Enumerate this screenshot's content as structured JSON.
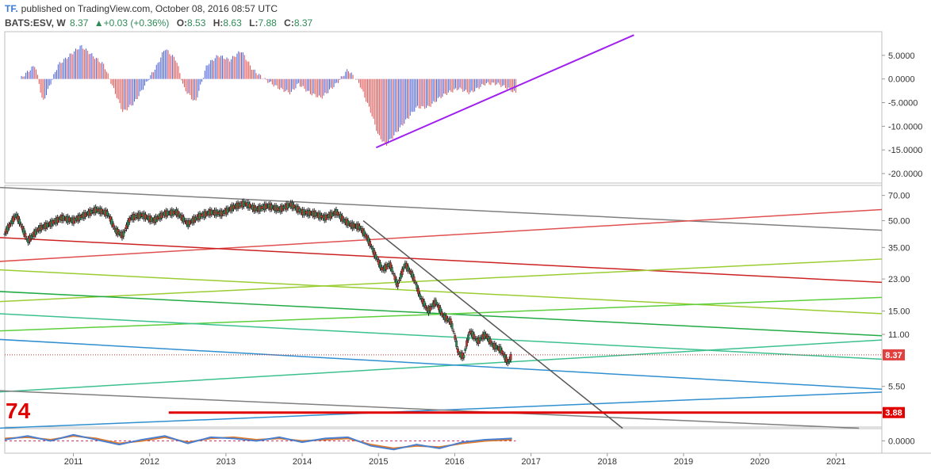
{
  "header": {
    "logo": "TF.",
    "published": "published on TradingView.com, October 08, 2016 08:57 UTC",
    "symbol": "BATS:ESV, W",
    "last": "8.37",
    "change_arrow": "▲",
    "change": "+0.03 (+0.36%)",
    "o_label": "O:",
    "o": "8.53",
    "h_label": "H:",
    "h": "8.63",
    "l_label": "L:",
    "l": "7.88",
    "c_label": "C:",
    "c": "8.37"
  },
  "overlay": {
    "count_label": "74"
  },
  "chart_data": [
    {
      "type": "bar",
      "panel": "oscillator-histogram",
      "yticks": [
        "5.0000",
        "0.0000",
        "-5.0000",
        "-10.0000",
        "-15.0000",
        "-20.0000"
      ],
      "ylim": [
        -22,
        10
      ],
      "x_start": 2010.3,
      "x_end": 2016.8,
      "samples": [
        [
          2010.3,
          0
        ],
        [
          2010.5,
          3
        ],
        [
          2010.6,
          -5
        ],
        [
          2010.8,
          3
        ],
        [
          2010.95,
          5
        ],
        [
          2011.1,
          7
        ],
        [
          2011.25,
          5
        ],
        [
          2011.4,
          3
        ],
        [
          2011.55,
          -3
        ],
        [
          2011.65,
          -7
        ],
        [
          2011.8,
          -5
        ],
        [
          2011.95,
          -1
        ],
        [
          2012.1,
          3
        ],
        [
          2012.2,
          6.5
        ],
        [
          2012.35,
          4
        ],
        [
          2012.45,
          -2
        ],
        [
          2012.6,
          -5
        ],
        [
          2012.75,
          3
        ],
        [
          2012.9,
          5
        ],
        [
          2013.05,
          4
        ],
        [
          2013.2,
          6
        ],
        [
          2013.35,
          2
        ],
        [
          2013.5,
          0
        ],
        [
          2013.7,
          -2
        ],
        [
          2013.85,
          -3
        ],
        [
          2013.95,
          -1
        ],
        [
          2014.1,
          -3
        ],
        [
          2014.25,
          -4
        ],
        [
          2014.45,
          -1
        ],
        [
          2014.6,
          2
        ],
        [
          2014.75,
          -1
        ],
        [
          2014.9,
          -7
        ],
        [
          2015.0,
          -12
        ],
        [
          2015.1,
          -14
        ],
        [
          2015.2,
          -12
        ],
        [
          2015.35,
          -9
        ],
        [
          2015.5,
          -6
        ],
        [
          2015.65,
          -6
        ],
        [
          2015.8,
          -4
        ],
        [
          2015.9,
          -3
        ],
        [
          2016.05,
          -2
        ],
        [
          2016.2,
          -3
        ],
        [
          2016.4,
          -1
        ],
        [
          2016.55,
          -1
        ],
        [
          2016.7,
          -2
        ],
        [
          2016.8,
          -3
        ]
      ],
      "annotations": [
        {
          "type": "trendline",
          "color": "#a020f0",
          "x1": 2014.97,
          "y1": -14.5,
          "x2": 2018.35,
          "y2": 9.3
        }
      ]
    },
    {
      "type": "line",
      "panel": "price",
      "title": "",
      "log_scale": true,
      "ylim": [
        3.2,
        80
      ],
      "x_range": [
        2010.1,
        2021.6
      ],
      "x_ticks": [
        "2011",
        "2012",
        "2013",
        "2014",
        "2015",
        "2016",
        "2017",
        "2018",
        "2019",
        "2020",
        "2021"
      ],
      "x_tick_values": [
        2011,
        2012,
        2013,
        2014,
        2015,
        2016,
        2017,
        2018,
        2019,
        2020,
        2021
      ],
      "yticks": [
        "70.00",
        "50.00",
        "35.00",
        "23.00",
        "15.00",
        "11.00",
        "5.50"
      ],
      "ytick_values": [
        70,
        50,
        35,
        23,
        15,
        11,
        5.5
      ],
      "last_price_label": "8.37",
      "last_price": 8.37,
      "level_label": "3.88",
      "level": 3.88,
      "series": [
        {
          "x": [
            2010.1,
            2010.25,
            2010.4,
            2010.55,
            2010.7,
            2010.85,
            2011.0,
            2011.15,
            2011.3,
            2011.45,
            2011.55,
            2011.65,
            2011.75,
            2011.9,
            2012.05,
            2012.2,
            2012.35,
            2012.5,
            2012.65,
            2012.8,
            2012.95,
            2013.1,
            2013.25,
            2013.4,
            2013.55,
            2013.7,
            2013.85,
            2014.0,
            2014.15,
            2014.3,
            2014.45,
            2014.55,
            2014.65,
            2014.75,
            2014.85,
            2014.95,
            2015.05,
            2015.15,
            2015.25,
            2015.35,
            2015.45,
            2015.55,
            2015.65,
            2015.75,
            2015.85,
            2015.95,
            2016.05,
            2016.12,
            2016.2,
            2016.3,
            2016.4,
            2016.5,
            2016.6,
            2016.7,
            2016.75
          ],
          "y": [
            42,
            54,
            38,
            45,
            48,
            52,
            50,
            54,
            58,
            55,
            44,
            41,
            52,
            54,
            50,
            55,
            56,
            48,
            53,
            56,
            55,
            60,
            63,
            58,
            61,
            58,
            62,
            56,
            55,
            52,
            56,
            50,
            47,
            46,
            40,
            32,
            26,
            28,
            21,
            28,
            24,
            18,
            15,
            17,
            14,
            13,
            8.5,
            8.2,
            11.5,
            10,
            11,
            9.5,
            9,
            7.5,
            8.4
          ]
        }
      ],
      "annotations": [
        {
          "type": "trendline",
          "color": "#7f7f7f",
          "x1": 2010.0,
          "y1": 78,
          "x2": 2021.6,
          "y2": 44
        },
        {
          "type": "trendline",
          "color": "#e05050",
          "x1": 2010.0,
          "y1": 29,
          "x2": 2021.6,
          "y2": 58
        },
        {
          "type": "trendline",
          "color": "#cc2222",
          "x1": 2010.0,
          "y1": 40,
          "x2": 2021.6,
          "y2": 22
        },
        {
          "type": "trendline",
          "color": "#9acd32",
          "x1": 2010.0,
          "y1": 17,
          "x2": 2021.6,
          "y2": 30
        },
        {
          "type": "trendline",
          "color": "#9acd32",
          "x1": 2010.0,
          "y1": 26,
          "x2": 2021.6,
          "y2": 14.5
        },
        {
          "type": "trendline",
          "color": "#22aa44",
          "x1": 2010.0,
          "y1": 19.5,
          "x2": 2021.6,
          "y2": 10.8
        },
        {
          "type": "trendline",
          "color": "#5ccf3c",
          "x1": 2010.0,
          "y1": 11.5,
          "x2": 2021.6,
          "y2": 18
        },
        {
          "type": "trendline",
          "color": "#3cc08f",
          "x1": 2010.0,
          "y1": 14.5,
          "x2": 2021.6,
          "y2": 7.9
        },
        {
          "type": "trendline",
          "color": "#3cc08f",
          "x1": 2010.0,
          "y1": 5.1,
          "x2": 2021.6,
          "y2": 10.2
        },
        {
          "type": "trendline",
          "color": "#2f8fd0",
          "x1": 2010.0,
          "y1": 10.3,
          "x2": 2021.6,
          "y2": 5.3
        },
        {
          "type": "trendline",
          "color": "#2f8fd0",
          "x1": 2010.0,
          "y1": 3.15,
          "x2": 2021.6,
          "y2": 5.1
        },
        {
          "type": "trendline",
          "color": "#7f7f7f",
          "x1": 2010.0,
          "y1": 5.2,
          "x2": 2021.3,
          "y2": 3.15
        },
        {
          "type": "trendline",
          "color": "#555555",
          "x1": 2014.8,
          "y1": 50,
          "x2": 2018.2,
          "y2": 3.15
        }
      ]
    },
    {
      "type": "line",
      "panel": "bottom-oscillator",
      "yticks": [
        "0.0000"
      ],
      "ylim": [
        -1,
        1
      ],
      "series": [
        {
          "name": "",
          "color": "#e07a2a",
          "x": [
            2010.1,
            2010.4,
            2010.7,
            2011.0,
            2011.3,
            2011.6,
            2011.9,
            2012.2,
            2012.5,
            2012.8,
            2013.1,
            2013.4,
            2013.7,
            2014.0,
            2014.3,
            2014.6,
            2014.9,
            2015.2,
            2015.5,
            2015.8,
            2016.1,
            2016.4,
            2016.75
          ],
          "y": [
            0.2,
            0.3,
            0.1,
            0.4,
            0.2,
            -0.2,
            0.0,
            0.3,
            -0.1,
            0.2,
            0.3,
            0.1,
            0.2,
            0.0,
            0.1,
            0.2,
            -0.3,
            -0.6,
            -0.4,
            -0.5,
            -0.2,
            0.0,
            0.1
          ]
        },
        {
          "name": "",
          "color": "#4a7fd0",
          "x": [
            2010.1,
            2010.4,
            2010.7,
            2011.0,
            2011.3,
            2011.6,
            2011.9,
            2012.2,
            2012.5,
            2012.8,
            2013.1,
            2013.4,
            2013.7,
            2014.0,
            2014.3,
            2014.6,
            2014.9,
            2015.2,
            2015.5,
            2015.8,
            2016.1,
            2016.4,
            2016.75
          ],
          "y": [
            0.1,
            0.4,
            0.0,
            0.5,
            0.1,
            -0.3,
            0.1,
            0.4,
            -0.2,
            0.3,
            0.2,
            0.0,
            0.3,
            -0.1,
            0.2,
            0.3,
            -0.4,
            -0.7,
            -0.3,
            -0.6,
            -0.1,
            0.1,
            0.2
          ]
        }
      ]
    }
  ]
}
